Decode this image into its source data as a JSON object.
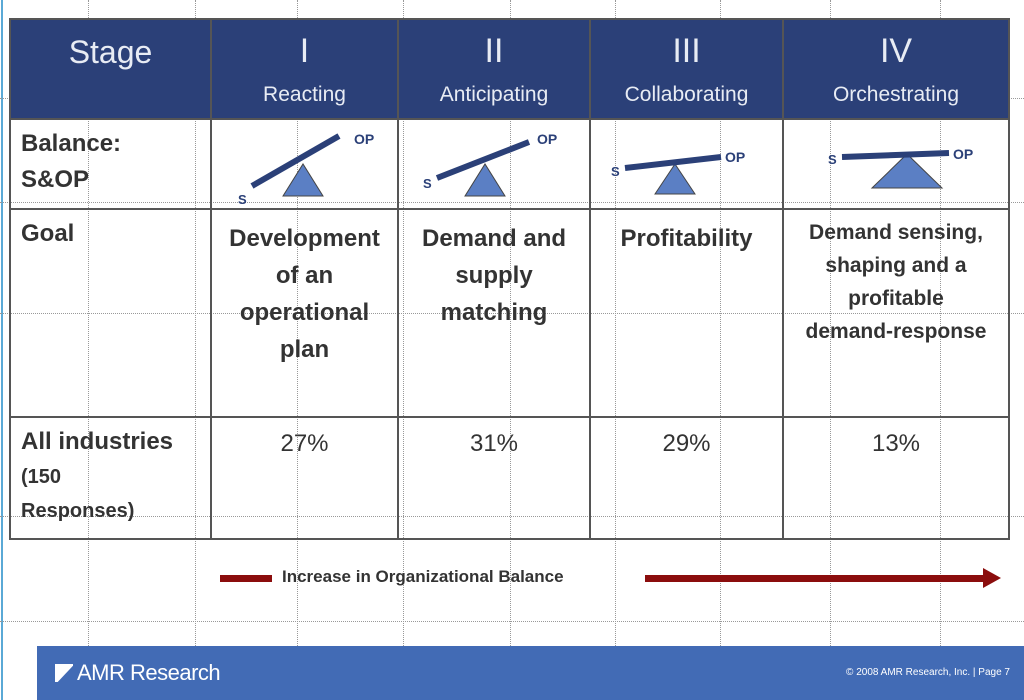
{
  "table": {
    "header": {
      "stage_label": "Stage",
      "stages": [
        {
          "numeral": "I",
          "name": "Reacting"
        },
        {
          "numeral": "II",
          "name": "Anticipating"
        },
        {
          "numeral": "III",
          "name": "Collaborating"
        },
        {
          "numeral": "IV",
          "name": "Orchestrating"
        }
      ]
    },
    "balance": {
      "label_line1": "Balance:",
      "label_line2": "S&OP",
      "s_label": "S",
      "op_label": "OP"
    },
    "goal": {
      "label": "Goal",
      "values": [
        [
          "Development",
          "of an",
          "operational",
          "plan"
        ],
        [
          "Demand and",
          "supply",
          "matching"
        ],
        [
          "Profitability"
        ],
        [
          "Demand sensing,",
          "shaping and a",
          "profitable",
          "demand-response"
        ]
      ]
    },
    "industries": {
      "label": "All industries",
      "sub1": "(150",
      "sub2": "Responses)",
      "values": [
        "27%",
        "31%",
        "29%",
        "13%"
      ]
    }
  },
  "arrow_label": "Increase in Organizational Balance",
  "footer": {
    "logo": "AMR Research",
    "copyright": "© 2008 AMR Research, Inc. | Page 7"
  },
  "colors": {
    "header": "#2b4078",
    "footer": "#426bb5",
    "arrow": "#8b0d0d",
    "seesaw": "#2b4078",
    "fulcrum": "#5b7fc4"
  }
}
